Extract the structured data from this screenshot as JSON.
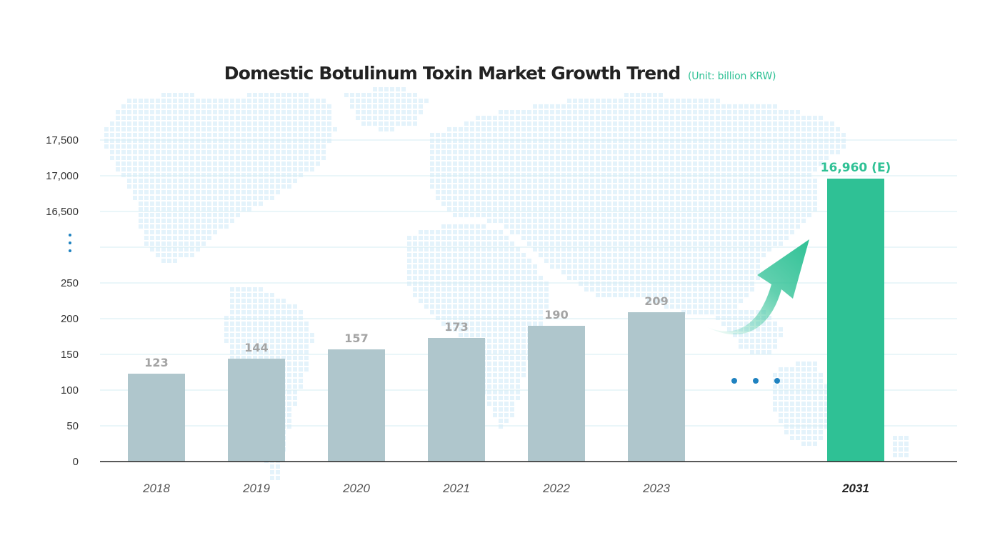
{
  "chart_data": {
    "type": "bar",
    "title": "Domestic Botulinum Toxin Market Growth Trend",
    "unit": "(Unit: billion KRW)",
    "categories": [
      "2018",
      "2019",
      "2020",
      "2021",
      "2022",
      "2023",
      "2031"
    ],
    "values": [
      123,
      144,
      157,
      173,
      190,
      209,
      16960
    ],
    "value_labels": [
      "123",
      "144",
      "157",
      "173",
      "190",
      "209",
      "16,960 (E)"
    ],
    "y_ticks_lower": [
      "0",
      "50",
      "100",
      "150",
      "200",
      "250"
    ],
    "y_ticks_upper": [
      "16,500",
      "17,000",
      "17,500"
    ],
    "ylim_lower": [
      0,
      250
    ],
    "ylim_upper": [
      16500,
      17500
    ],
    "axis_break": true,
    "estimated_category": "2031",
    "grid": true,
    "colors": {
      "actual_bar": "#afc6cc",
      "estimate_bar": "#2fc195",
      "actual_label": "#a4a4a4",
      "estimate_label": "#2fc195",
      "grid": "#d6ecf3",
      "axis": "#222222",
      "break_dots": "#1f82c0",
      "map_tiles": "#e4f3fb"
    }
  }
}
